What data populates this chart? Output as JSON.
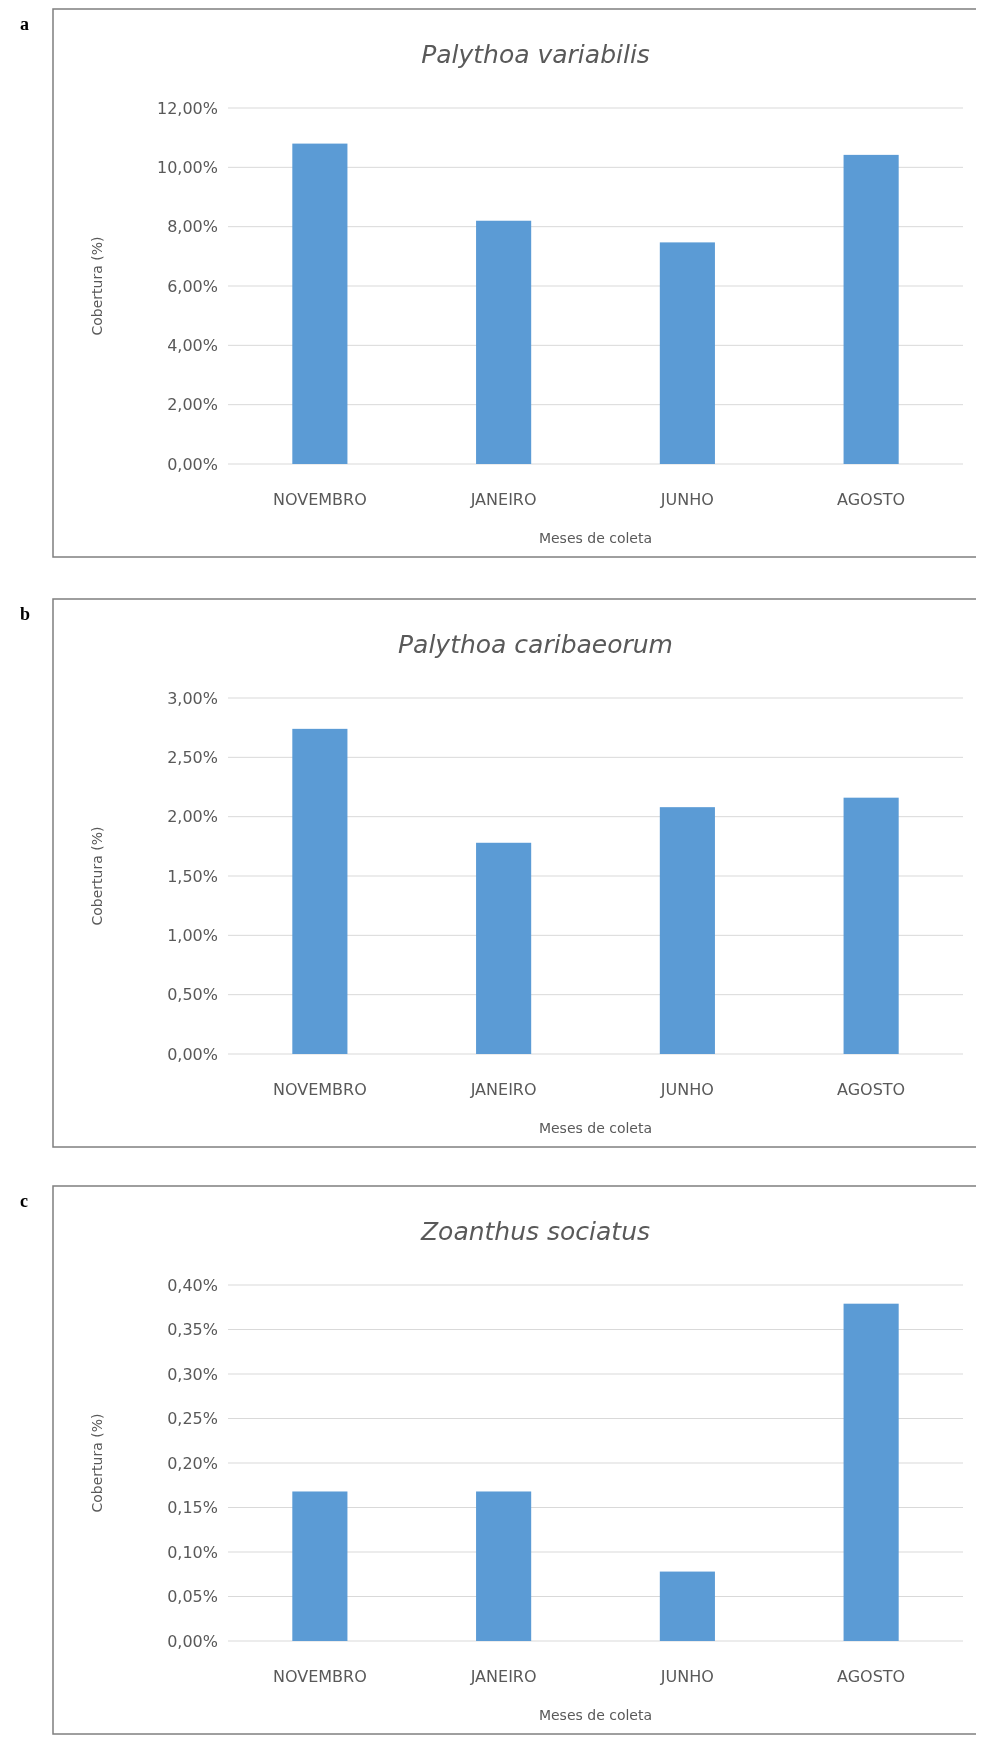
{
  "chart_data": [
    {
      "type": "bar",
      "title": "Palythoa variabilis",
      "xlabel": "Meses de coleta",
      "ylabel": "Cobertura (%)",
      "annotations": [
        "a"
      ],
      "categories": [
        "NOVEMBRO",
        "JANEIRO",
        "JUNHO",
        "AGOSTO"
      ],
      "values": [
        10.8,
        8.2,
        7.47,
        10.42
      ],
      "color": "#5b9bd5",
      "ylim": [
        0,
        12
      ],
      "yticks": [
        {
          "value": 0,
          "label": "0,00%"
        },
        {
          "value": 2,
          "label": "2,00%"
        },
        {
          "value": 4,
          "label": "4,00%"
        },
        {
          "value": 6,
          "label": "6,00%"
        },
        {
          "value": 8,
          "label": "8,00%"
        },
        {
          "value": 10,
          "label": "10,00%"
        },
        {
          "value": 12,
          "label": "12,00%"
        }
      ],
      "grid": "y"
    },
    {
      "type": "bar",
      "title": "Palythoa caribaeorum",
      "xlabel": "Meses de coleta",
      "ylabel": "Cobertura (%)",
      "annotations": [
        "b"
      ],
      "categories": [
        "NOVEMBRO",
        "JANEIRO",
        "JUNHO",
        "AGOSTO"
      ],
      "values": [
        2.74,
        1.78,
        2.08,
        2.16
      ],
      "color": "#5b9bd5",
      "ylim": [
        0,
        3
      ],
      "yticks": [
        {
          "value": 0,
          "label": "0,00%"
        },
        {
          "value": 0.5,
          "label": "0,50%"
        },
        {
          "value": 1,
          "label": "1,00%"
        },
        {
          "value": 1.5,
          "label": "1,50%"
        },
        {
          "value": 2,
          "label": "2,00%"
        },
        {
          "value": 2.5,
          "label": "2,50%"
        },
        {
          "value": 3,
          "label": "3,00%"
        }
      ],
      "grid": "y"
    },
    {
      "type": "bar",
      "title": "Zoanthus sociatus",
      "xlabel": "Meses de coleta",
      "ylabel": "Cobertura (%)",
      "annotations": [
        "c"
      ],
      "categories": [
        "NOVEMBRO",
        "JANEIRO",
        "JUNHO",
        "AGOSTO"
      ],
      "values": [
        0.168,
        0.168,
        0.078,
        0.379
      ],
      "color": "#5b9bd5",
      "ylim": [
        0,
        0.4
      ],
      "yticks": [
        {
          "value": 0,
          "label": "0,00%"
        },
        {
          "value": 0.05,
          "label": "0,05%"
        },
        {
          "value": 0.1,
          "label": "0,10%"
        },
        {
          "value": 0.15,
          "label": "0,15%"
        },
        {
          "value": 0.2,
          "label": "0,20%"
        },
        {
          "value": 0.25,
          "label": "0,25%"
        },
        {
          "value": 0.3,
          "label": "0,30%"
        },
        {
          "value": 0.35,
          "label": "0,35%"
        },
        {
          "value": 0.4,
          "label": "0,40%"
        }
      ],
      "grid": "y"
    }
  ]
}
